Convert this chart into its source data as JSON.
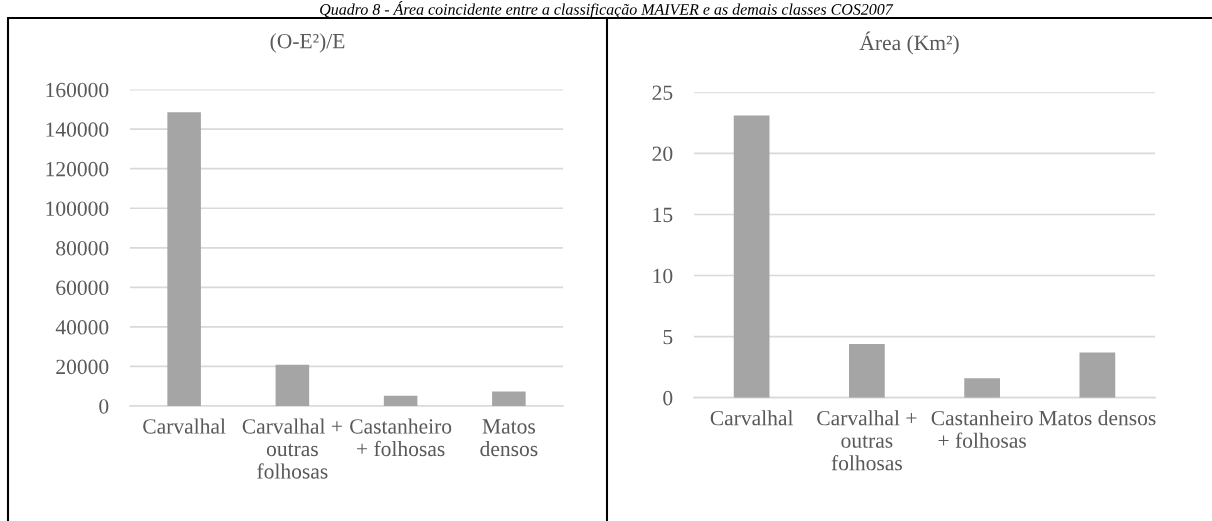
{
  "chart_data": [
    {
      "type": "bar",
      "title": "(O-E²)/E",
      "categories": [
        "Carvalhal",
        "Carvalhal + outras folhosas",
        "Castanheiro + folhosas",
        "Matos densos"
      ],
      "values": [
        148500,
        20900,
        5200,
        7300
      ],
      "color": "#a5a5a5",
      "ylim": [
        0,
        160000
      ],
      "yticks": [
        0,
        20000,
        40000,
        60000,
        80000,
        100000,
        120000,
        140000,
        160000
      ],
      "grid": "y",
      "annotations": [
        "Quadro 8 - Área coincidente entre a classificação MAIVER e as demais classes COS2007"
      ]
    },
    {
      "type": "bar",
      "title": "Área (Km²)",
      "categories": [
        "Carvalhal",
        "Carvalhal + outras folhosas",
        "Castanheiro + folhosas",
        "Matos densos"
      ],
      "values": [
        23.1,
        4.4,
        1.6,
        3.7
      ],
      "color": "#a5a5a5",
      "ylim": [
        0,
        25
      ],
      "yticks": [
        0,
        5,
        10,
        15,
        20,
        25
      ],
      "grid": "y"
    }
  ]
}
